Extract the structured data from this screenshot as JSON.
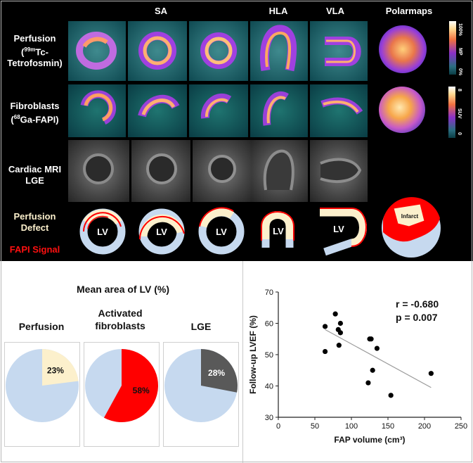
{
  "panel_top": {
    "columns": [
      "SA",
      "HLA",
      "VLA",
      "Polarmaps"
    ],
    "rows": {
      "perfusion": {
        "line1": "Perfusion",
        "line2_prefix": "(",
        "sup": "99m",
        "line2_rest": "Tc-",
        "line3": "Tetrofosmin)"
      },
      "fibroblasts": {
        "line1": "Fibroblasts",
        "line2_prefix": "(",
        "sup": "68",
        "line2_rest": "Ga-FAPI)"
      },
      "mri": {
        "line1": "Cardiac MRI",
        "line2": "LGE"
      },
      "schematic": {
        "defect_line1": "Perfusion",
        "defect_line2": "Defect",
        "fapi": "FAPI Signal"
      }
    },
    "lv_label": "LV",
    "infarct_label": "Infarct",
    "colorbar1": {
      "top": "100%",
      "unit": "MP",
      "bottom": "0%"
    },
    "colorbar2": {
      "top": "8",
      "unit": "SUV",
      "bottom": "0"
    }
  },
  "pies": {
    "heading": "Mean area of LV (%)",
    "items": [
      {
        "label_line1": "Perfusion",
        "label_line2": "",
        "percent": 23,
        "text": "23%",
        "color": "#fcf0cc"
      },
      {
        "label_line1": "Activated",
        "label_line2": "fibroblasts",
        "percent": 58,
        "text": "58%",
        "color": "#ff0000"
      },
      {
        "label_line1": "LGE",
        "label_line2": "",
        "percent": 28,
        "text": "28%",
        "color": "#595959"
      }
    ],
    "base_color": "#c6d9ef"
  },
  "chart_data": {
    "type": "scatter",
    "xlabel": "FAP volume (cm³)",
    "ylabel": "Follow-up LVEF (%)",
    "xlim": [
      0,
      250
    ],
    "ylim": [
      30,
      70
    ],
    "xticks": [
      0,
      50,
      100,
      150,
      200,
      250
    ],
    "yticks": [
      30,
      40,
      50,
      60,
      70
    ],
    "points": [
      {
        "x": 64,
        "y": 59
      },
      {
        "x": 64,
        "y": 51
      },
      {
        "x": 78,
        "y": 63
      },
      {
        "x": 82,
        "y": 58
      },
      {
        "x": 85,
        "y": 60
      },
      {
        "x": 83,
        "y": 53
      },
      {
        "x": 85,
        "y": 57
      },
      {
        "x": 125,
        "y": 55
      },
      {
        "x": 127,
        "y": 55
      },
      {
        "x": 123,
        "y": 41
      },
      {
        "x": 129,
        "y": 45
      },
      {
        "x": 135,
        "y": 52
      },
      {
        "x": 154,
        "y": 37
      },
      {
        "x": 209,
        "y": 44
      }
    ],
    "fit": {
      "x": [
        64,
        209
      ],
      "y": [
        58,
        39.5
      ]
    },
    "annotations": {
      "r": "r = -0.680",
      "p": "p = 0.007"
    },
    "grid": false
  }
}
